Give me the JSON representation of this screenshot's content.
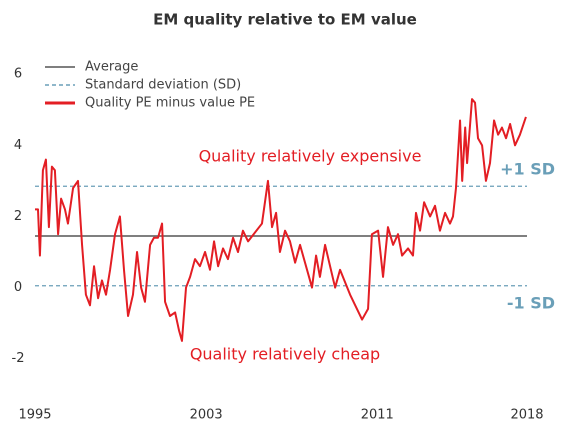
{
  "chart_data": {
    "type": "line",
    "title": "EM quality relative to EM value",
    "x": [
      1995.0,
      1995.14,
      1995.23,
      1995.37,
      1995.51,
      1995.65,
      1995.79,
      1995.93,
      1996.08,
      1996.22,
      1996.4,
      1996.54,
      1996.78,
      1997.01,
      1997.2,
      1997.38,
      1997.57,
      1997.76,
      1997.95,
      1998.13,
      1998.32,
      1998.51,
      1998.74,
      1998.97,
      1999.16,
      1999.35,
      1999.58,
      1999.77,
      1999.96,
      2000.14,
      2000.38,
      2000.56,
      2000.75,
      2000.94,
      2001.08,
      2001.31,
      2001.55,
      2001.73,
      2001.87,
      2002.06,
      2002.25,
      2002.48,
      2002.71,
      2002.95,
      2003.18,
      2003.37,
      2003.56,
      2003.79,
      2004.02,
      2004.26,
      2004.49,
      2004.72,
      2004.96,
      2005.61,
      2005.89,
      2006.08,
      2006.27,
      2006.45,
      2006.69,
      2006.92,
      2007.16,
      2007.39,
      2007.95,
      2008.14,
      2008.32,
      2008.56,
      2009.03,
      2009.26,
      2009.73,
      2010.29,
      2010.57,
      2010.75,
      2011.04,
      2011.27,
      2011.5,
      2011.74,
      2011.97,
      2012.16,
      2012.44,
      2012.67,
      2012.81,
      2013.0,
      2013.19,
      2013.47,
      2013.7,
      2013.93,
      2014.17,
      2014.4,
      2014.54,
      2014.68,
      2014.78,
      2014.87,
      2014.97,
      2015.11,
      2015.2,
      2015.29,
      2015.43,
      2015.57,
      2015.71,
      2015.9,
      2016.08,
      2016.27,
      2016.46,
      2016.65,
      2016.83,
      2017.02,
      2017.21,
      2017.44,
      2017.67,
      2017.95
    ],
    "series": [
      {
        "name": "Quality PE minus value PE",
        "color": "#e31e24",
        "values": [
          2.2,
          2.2,
          0.9,
          3.3,
          3.6,
          1.7,
          3.4,
          3.3,
          1.5,
          2.5,
          2.2,
          1.8,
          2.8,
          3.0,
          1.2,
          -0.2,
          -0.5,
          0.6,
          -0.3,
          0.2,
          -0.2,
          0.5,
          1.5,
          2.0,
          0.5,
          -0.8,
          -0.2,
          1.0,
          0.0,
          -0.4,
          1.2,
          1.4,
          1.4,
          1.8,
          -0.4,
          -0.8,
          -0.7,
          -1.2,
          -1.5,
          0.0,
          0.3,
          0.8,
          0.6,
          1.0,
          0.5,
          1.3,
          0.6,
          1.1,
          0.8,
          1.4,
          1.0,
          1.6,
          1.3,
          1.8,
          3.0,
          1.7,
          2.1,
          1.0,
          1.6,
          1.3,
          0.7,
          1.2,
          0.0,
          0.9,
          0.3,
          1.2,
          0.0,
          0.5,
          -0.2,
          -0.9,
          -0.6,
          1.5,
          1.6,
          0.3,
          1.7,
          1.2,
          1.5,
          0.9,
          1.1,
          0.9,
          2.1,
          1.6,
          2.4,
          2.0,
          2.3,
          1.6,
          2.1,
          1.8,
          2.0,
          2.8,
          3.8,
          4.7,
          3.0,
          4.5,
          3.5,
          4.2,
          5.3,
          5.2,
          4.2,
          4.0,
          3.0,
          3.5,
          4.7,
          4.3,
          4.5,
          4.2,
          4.6,
          4.0,
          4.3,
          4.8
        ]
      }
    ],
    "reference_lines": [
      {
        "name": "Average",
        "color": "#555555",
        "style": "solid",
        "values": [
          1.45
        ]
      },
      {
        "name": "Standard deviation (SD)",
        "color": "#6a9fb8",
        "style": "dashed",
        "values": [
          2.85,
          0.05
        ],
        "labels": [
          "+1 SD",
          "-1 SD"
        ]
      }
    ],
    "annotations": [
      "Quality relatively expensive",
      "Quality relatively cheap"
    ],
    "xlim": [
      1995,
      2018
    ],
    "xticks": [
      1995,
      2003,
      2011,
      2018
    ],
    "ylim": [
      -2.6,
      6.4
    ],
    "yticks": [
      -2,
      0,
      2,
      4,
      6
    ]
  }
}
